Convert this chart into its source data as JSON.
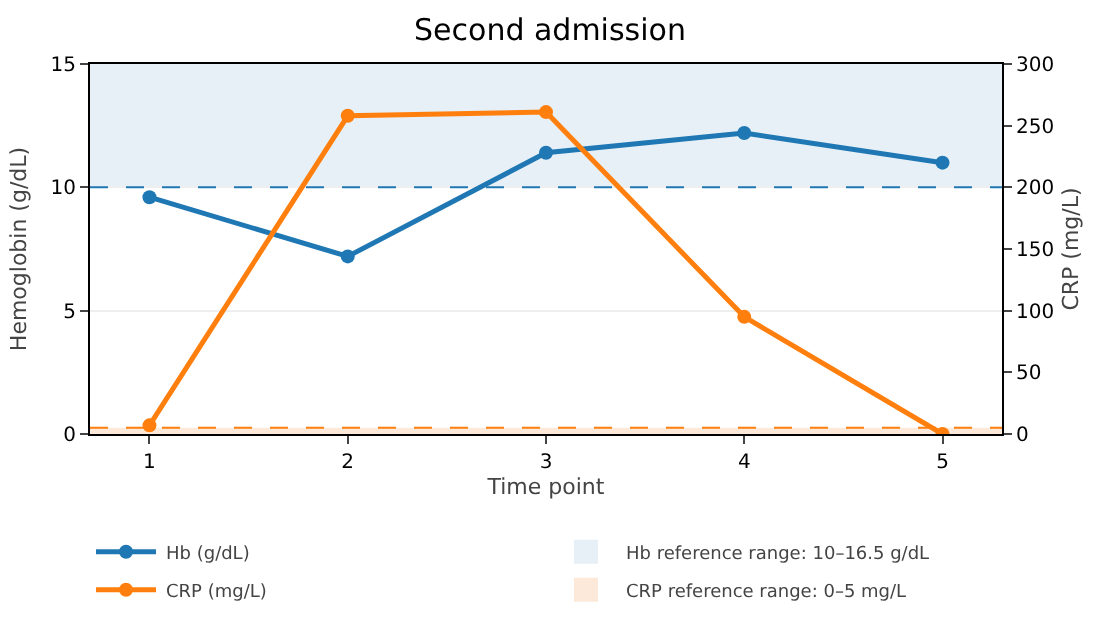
{
  "chart_data": {
    "type": "line",
    "title": "Second admission",
    "xlabel": "Time point",
    "ylabel": "Hemoglobin (g/dL)",
    "y2label": "CRP (mg/L)",
    "x": [
      1,
      2,
      3,
      4,
      5
    ],
    "xlim": [
      0.7,
      5.3
    ],
    "xticks": [
      1,
      2,
      3,
      4,
      5
    ],
    "ylim": [
      0,
      15
    ],
    "yticks": [
      0,
      5,
      10,
      15
    ],
    "y2lim": [
      0,
      300
    ],
    "y2ticks": [
      0,
      50,
      100,
      150,
      200,
      250,
      300
    ],
    "series": [
      {
        "name": "Hb (g/dL)",
        "color": "#1f77b4",
        "values": [
          9.6,
          7.2,
          11.4,
          12.2,
          11.0
        ]
      },
      {
        "name": "CRP (mg/L)",
        "color": "#ff7f0e",
        "values": [
          7,
          258,
          261,
          95,
          0
        ],
        "axis": "y2"
      }
    ],
    "bands": [
      {
        "axis": "y",
        "from": 10,
        "to": 16.5,
        "label": "Hb reference range: 10–16.5 g/dL",
        "color": "#e6f0f6"
      },
      {
        "axis": "y2",
        "from": 0,
        "to": 5,
        "label": "CRP reference range: 0–5 mg/L",
        "color": "#fde9d9"
      }
    ],
    "ref_lines": [
      {
        "axis": "y",
        "value": 10,
        "color": "#1f77b4",
        "line_style": "dashed"
      },
      {
        "axis": "y2",
        "value": 5,
        "color": "#ff7f0e",
        "line_style": "dashed"
      }
    ],
    "marker": "circle",
    "line_style": "solid",
    "grid": "y",
    "legend": "bottom"
  }
}
